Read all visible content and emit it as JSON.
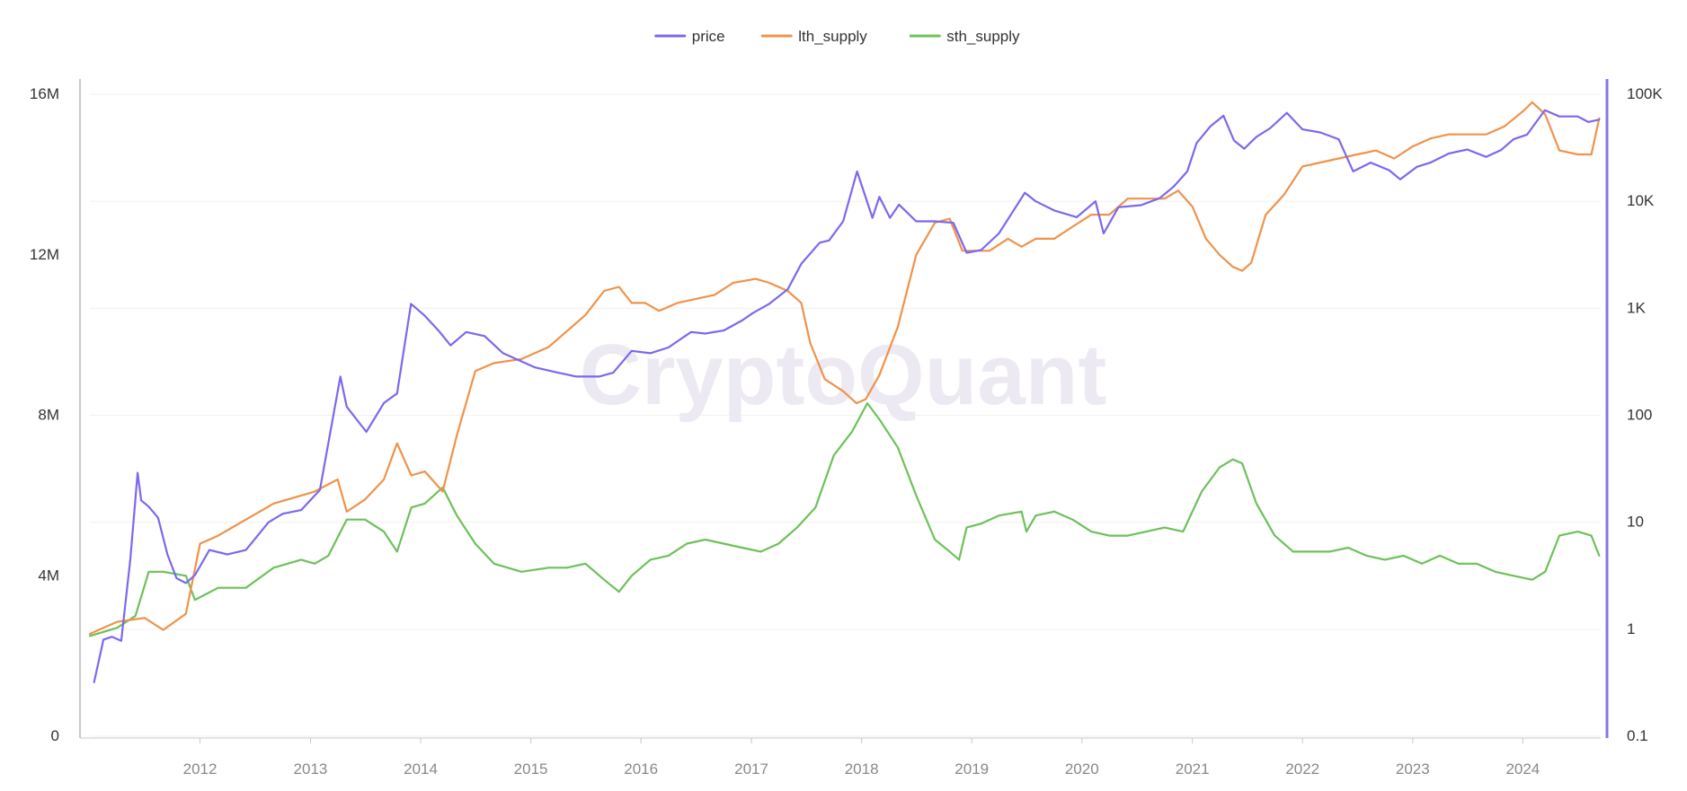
{
  "chart_data": {
    "type": "line",
    "watermark": "CryptoQuant",
    "colors": {
      "price": "#7b68ee",
      "lth_supply": "#f0924a",
      "sth_supply": "#6cc15a",
      "axis": "#c8c8c8",
      "right_axis": "#8a75e8",
      "grid": "#f0f0f0",
      "tick_text": "#333333",
      "x_tick_text": "#888888",
      "watermark": "#ece9f3"
    },
    "legend": {
      "position": "top-center",
      "items": [
        {
          "key": "price",
          "label": "price"
        },
        {
          "key": "lth_supply",
          "label": "lth_supply"
        },
        {
          "key": "sth_supply",
          "label": "sth_supply"
        }
      ]
    },
    "x_axis": {
      "type": "time",
      "range": [
        "2011-01-01",
        "2024-09-15"
      ],
      "ticks": [
        "2012",
        "2013",
        "2014",
        "2015",
        "2016",
        "2017",
        "2018",
        "2019",
        "2020",
        "2021",
        "2022",
        "2023",
        "2024"
      ]
    },
    "y_left": {
      "scale": "linear",
      "range": [
        0,
        16000000
      ],
      "ticks": [
        {
          "value": 0,
          "label": "0"
        },
        {
          "value": 4000000,
          "label": "4M"
        },
        {
          "value": 8000000,
          "label": "8M"
        },
        {
          "value": 12000000,
          "label": "12M"
        },
        {
          "value": 16000000,
          "label": "16M"
        }
      ]
    },
    "y_right": {
      "scale": "log",
      "range": [
        0.1,
        100000
      ],
      "ticks": [
        {
          "value": 0.1,
          "label": "0.1"
        },
        {
          "value": 1,
          "label": "1"
        },
        {
          "value": 10,
          "label": "10"
        },
        {
          "value": 100,
          "label": "100"
        },
        {
          "value": 1000,
          "label": "1K"
        },
        {
          "value": 10000,
          "label": "10K"
        },
        {
          "value": 100000,
          "label": "100K"
        }
      ]
    },
    "grid": true,
    "series": [
      {
        "name": "price",
        "axis": "right",
        "x": [
          "2011-01-15",
          "2011-02-15",
          "2011-03-15",
          "2011-04-15",
          "2011-05-15",
          "2011-06-08",
          "2011-06-20",
          "2011-07-15",
          "2011-08-15",
          "2011-09-15",
          "2011-10-15",
          "2011-11-15",
          "2011-12-15",
          "2012-02-01",
          "2012-04-01",
          "2012-06-01",
          "2012-08-15",
          "2012-10-01",
          "2012-12-01",
          "2013-02-01",
          "2013-04-10",
          "2013-05-01",
          "2013-07-05",
          "2013-09-01",
          "2013-10-15",
          "2013-11-30",
          "2014-01-15",
          "2014-03-01",
          "2014-04-10",
          "2014-06-01",
          "2014-08-01",
          "2014-10-01",
          "2015-01-15",
          "2015-04-01",
          "2015-06-01",
          "2015-08-15",
          "2015-10-01",
          "2015-12-01",
          "2016-02-01",
          "2016-04-01",
          "2016-06-15",
          "2016-08-01",
          "2016-10-01",
          "2016-12-01",
          "2017-01-05",
          "2017-03-01",
          "2017-05-01",
          "2017-06-15",
          "2017-08-15",
          "2017-09-15",
          "2017-11-01",
          "2017-12-17",
          "2018-02-06",
          "2018-03-01",
          "2018-04-05",
          "2018-05-05",
          "2018-07-01",
          "2018-09-01",
          "2018-11-01",
          "2018-12-15",
          "2019-02-01",
          "2019-04-01",
          "2019-06-26",
          "2019-08-01",
          "2019-10-01",
          "2019-12-15",
          "2020-02-15",
          "2020-03-13",
          "2020-05-01",
          "2020-07-15",
          "2020-09-15",
          "2020-11-01",
          "2020-12-15",
          "2021-01-15",
          "2021-03-01",
          "2021-04-14",
          "2021-05-19",
          "2021-06-22",
          "2021-08-01",
          "2021-09-15",
          "2021-11-10",
          "2022-01-01",
          "2022-03-01",
          "2022-05-01",
          "2022-06-18",
          "2022-08-15",
          "2022-10-15",
          "2022-11-21",
          "2023-01-15",
          "2023-03-01",
          "2023-05-01",
          "2023-07-01",
          "2023-09-01",
          "2023-10-20",
          "2023-12-01",
          "2024-01-15",
          "2024-03-14",
          "2024-05-01",
          "2024-07-01",
          "2024-08-05",
          "2024-09-10"
        ],
        "values": [
          0.32,
          0.8,
          0.85,
          0.78,
          4.5,
          29,
          16,
          14,
          11,
          5,
          3,
          2.7,
          3.2,
          5.5,
          5,
          5.5,
          10,
          12,
          13,
          20,
          230,
          120,
          70,
          130,
          160,
          1100,
          850,
          620,
          450,
          600,
          550,
          380,
          280,
          250,
          230,
          230,
          250,
          400,
          380,
          430,
          600,
          580,
          620,
          770,
          900,
          1100,
          1500,
          2600,
          4100,
          4300,
          6500,
          19000,
          7000,
          11000,
          7000,
          9300,
          6500,
          6500,
          6300,
          3300,
          3500,
          5000,
          12000,
          10000,
          8200,
          7100,
          10000,
          5000,
          8800,
          9200,
          10700,
          13800,
          19000,
          35000,
          50000,
          63000,
          37000,
          31000,
          40000,
          48000,
          67000,
          47000,
          44000,
          38000,
          19000,
          23000,
          19500,
          16000,
          21000,
          23000,
          28000,
          30500,
          26000,
          30000,
          38000,
          42000,
          71000,
          62000,
          62000,
          55000,
          58000
        ]
      },
      {
        "name": "lth_supply",
        "axis": "left",
        "x": [
          "2011-01-01",
          "2011-04-01",
          "2011-07-01",
          "2011-09-01",
          "2011-11-15",
          "2012-01-01",
          "2012-03-01",
          "2012-06-01",
          "2012-09-01",
          "2012-12-01",
          "2013-01-15",
          "2013-04-01",
          "2013-05-01",
          "2013-07-01",
          "2013-09-01",
          "2013-10-15",
          "2013-12-01",
          "2014-01-15",
          "2014-03-15",
          "2014-05-01",
          "2014-07-01",
          "2014-09-01",
          "2014-12-01",
          "2015-03-01",
          "2015-05-01",
          "2015-07-01",
          "2015-09-01",
          "2015-10-20",
          "2015-12-01",
          "2016-01-15",
          "2016-03-01",
          "2016-05-01",
          "2016-07-01",
          "2016-09-01",
          "2016-11-01",
          "2017-01-15",
          "2017-03-01",
          "2017-05-01",
          "2017-06-15",
          "2017-07-15",
          "2017-09-01",
          "2017-11-01",
          "2017-12-15",
          "2018-01-15",
          "2018-03-01",
          "2018-05-01",
          "2018-07-01",
          "2018-09-01",
          "2018-10-20",
          "2018-12-01",
          "2019-01-15",
          "2019-03-01",
          "2019-05-01",
          "2019-06-15",
          "2019-08-01",
          "2019-10-01",
          "2019-12-01",
          "2020-02-01",
          "2020-04-01",
          "2020-06-01",
          "2020-08-01",
          "2020-10-01",
          "2020-11-15",
          "2021-01-01",
          "2021-02-15",
          "2021-04-01",
          "2021-05-15",
          "2021-06-15",
          "2021-07-15",
          "2021-09-01",
          "2021-11-01",
          "2022-01-01",
          "2022-03-01",
          "2022-05-01",
          "2022-07-01",
          "2022-09-01",
          "2022-11-01",
          "2023-01-01",
          "2023-03-01",
          "2023-05-01",
          "2023-07-01",
          "2023-09-01",
          "2023-11-01",
          "2024-01-05",
          "2024-02-01",
          "2024-03-15",
          "2024-05-01",
          "2024-07-01",
          "2024-08-15",
          "2024-09-10"
        ],
        "values": [
          2550000,
          2850000,
          2950000,
          2650000,
          3050000,
          4800000,
          5000000,
          5400000,
          5800000,
          6000000,
          6100000,
          6400000,
          5600000,
          5900000,
          6400000,
          7300000,
          6500000,
          6600000,
          6100000,
          7500000,
          9100000,
          9300000,
          9400000,
          9700000,
          10100000,
          10500000,
          11100000,
          11200000,
          10800000,
          10800000,
          10600000,
          10800000,
          10900000,
          11000000,
          11300000,
          11400000,
          11300000,
          11100000,
          10800000,
          9800000,
          8900000,
          8600000,
          8300000,
          8400000,
          9000000,
          10200000,
          12000000,
          12800000,
          12900000,
          12100000,
          12100000,
          12100000,
          12400000,
          12200000,
          12400000,
          12400000,
          12700000,
          13000000,
          13000000,
          13400000,
          13400000,
          13400000,
          13600000,
          13200000,
          12400000,
          12000000,
          11700000,
          11600000,
          11800000,
          13000000,
          13500000,
          14200000,
          14300000,
          14400000,
          14500000,
          14600000,
          14400000,
          14700000,
          14900000,
          15000000,
          15000000,
          15000000,
          15200000,
          15600000,
          15800000,
          15500000,
          14600000,
          14500000,
          14500000,
          15400000
        ]
      },
      {
        "name": "sth_supply",
        "axis": "left",
        "x": [
          "2011-01-01",
          "2011-04-01",
          "2011-06-01",
          "2011-07-15",
          "2011-09-01",
          "2011-11-15",
          "2011-12-15",
          "2012-03-01",
          "2012-06-01",
          "2012-09-01",
          "2012-12-01",
          "2013-01-15",
          "2013-03-01",
          "2013-05-01",
          "2013-07-01",
          "2013-09-01",
          "2013-10-15",
          "2013-12-01",
          "2014-01-15",
          "2014-03-15",
          "2014-05-01",
          "2014-07-01",
          "2014-09-01",
          "2014-12-01",
          "2015-03-01",
          "2015-05-01",
          "2015-07-01",
          "2015-09-01",
          "2015-10-20",
          "2015-12-01",
          "2016-02-01",
          "2016-04-01",
          "2016-06-01",
          "2016-08-01",
          "2016-10-01",
          "2016-12-01",
          "2017-02-01",
          "2017-04-01",
          "2017-06-01",
          "2017-08-01",
          "2017-10-01",
          "2017-12-01",
          "2018-01-20",
          "2018-03-01",
          "2018-05-01",
          "2018-07-01",
          "2018-09-01",
          "2018-10-20",
          "2018-11-20",
          "2018-12-15",
          "2019-02-01",
          "2019-04-01",
          "2019-06-15",
          "2019-07-01",
          "2019-08-01",
          "2019-10-01",
          "2019-12-01",
          "2020-02-01",
          "2020-04-01",
          "2020-06-01",
          "2020-08-01",
          "2020-10-01",
          "2020-12-01",
          "2021-02-01",
          "2021-04-01",
          "2021-05-15",
          "2021-06-15",
          "2021-08-01",
          "2021-10-01",
          "2021-12-01",
          "2022-02-01",
          "2022-04-01",
          "2022-06-01",
          "2022-08-01",
          "2022-10-01",
          "2022-12-01",
          "2023-02-01",
          "2023-04-01",
          "2023-06-01",
          "2023-08-01",
          "2023-10-01",
          "2023-12-01",
          "2024-02-01",
          "2024-03-15",
          "2024-05-01",
          "2024-07-01",
          "2024-08-15",
          "2024-09-10"
        ],
        "values": [
          2500000,
          2700000,
          3000000,
          4100000,
          4100000,
          4000000,
          3400000,
          3700000,
          3700000,
          4200000,
          4400000,
          4300000,
          4500000,
          5400000,
          5400000,
          5100000,
          4600000,
          5700000,
          5800000,
          6200000,
          5500000,
          4800000,
          4300000,
          4100000,
          4200000,
          4200000,
          4300000,
          3900000,
          3600000,
          4000000,
          4400000,
          4500000,
          4800000,
          4900000,
          4800000,
          4700000,
          4600000,
          4800000,
          5200000,
          5700000,
          7000000,
          7600000,
          8300000,
          7900000,
          7200000,
          6000000,
          4900000,
          4600000,
          4400000,
          5200000,
          5300000,
          5500000,
          5600000,
          5100000,
          5500000,
          5600000,
          5400000,
          5100000,
          5000000,
          5000000,
          5100000,
          5200000,
          5100000,
          6100000,
          6700000,
          6900000,
          6800000,
          5800000,
          5000000,
          4600000,
          4600000,
          4600000,
          4700000,
          4500000,
          4400000,
          4500000,
          4300000,
          4500000,
          4300000,
          4300000,
          4100000,
          4000000,
          3900000,
          4100000,
          5000000,
          5100000,
          5000000,
          4500000
        ]
      }
    ]
  }
}
